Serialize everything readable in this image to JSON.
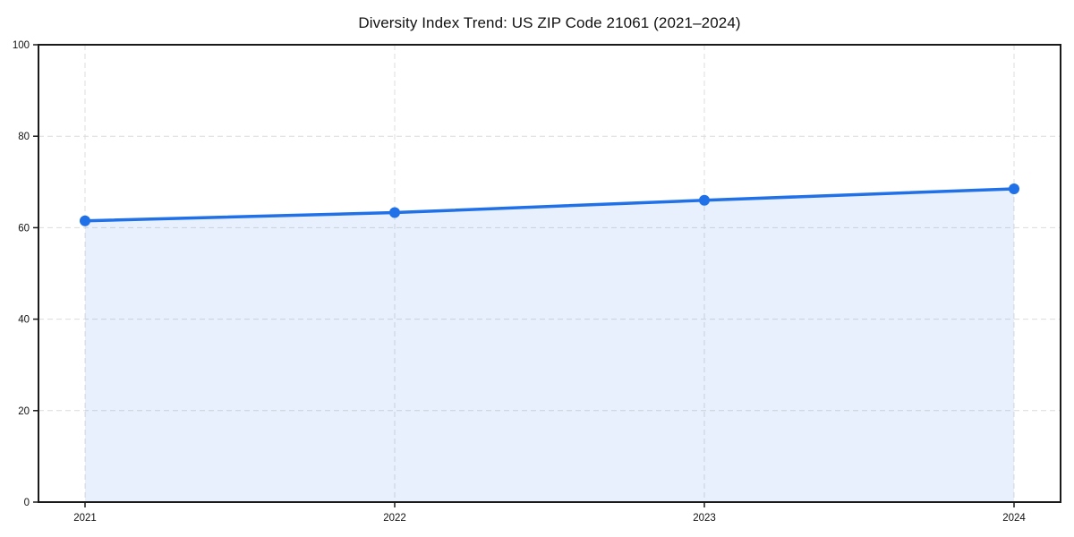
{
  "page": {
    "background": "#ffffff"
  },
  "chart_data": {
    "type": "area",
    "title": "Diversity Index Trend: US ZIP Code 21061 (2021–2024)",
    "categories": [
      "2021",
      "2022",
      "2023",
      "2024"
    ],
    "series": [
      {
        "name": "Diversity Index",
        "values": [
          61.5,
          63.3,
          66.0,
          68.5
        ]
      }
    ],
    "xlabel": "",
    "ylabel": "",
    "ylim": [
      0,
      100
    ],
    "yticks": [
      0,
      20,
      40,
      60,
      80,
      100
    ],
    "grid": true,
    "grid_style": "dashed",
    "legend_position": "none",
    "colors": {
      "line": "#2070e8",
      "marker": "#2070e8",
      "fill": "rgba(32, 112, 232, 0.10)",
      "grid": "#dcdcdc",
      "axis": "#1a1a1a",
      "text": "#111111"
    }
  }
}
